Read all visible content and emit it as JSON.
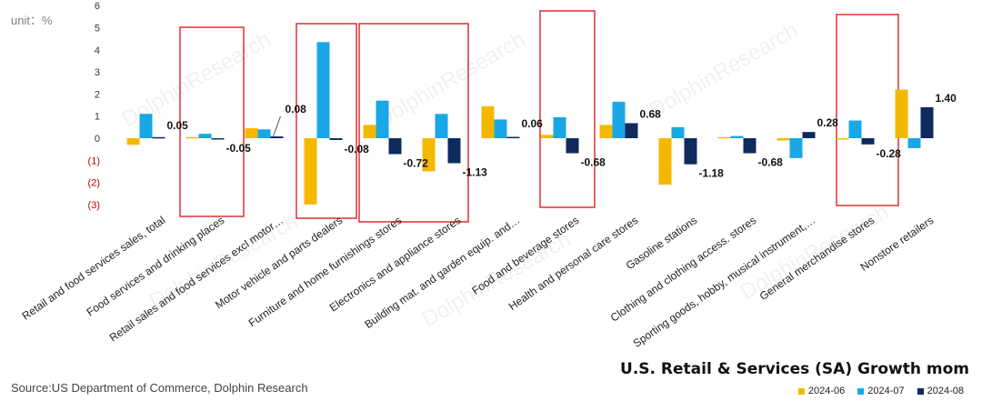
{
  "chart_data": {
    "type": "bar",
    "title": "U.S. Retail & Services (SA) Growth mom",
    "unit_label": "unit：%",
    "source": "Source:US Department of Commerce, Dolphin Research",
    "ylim": [
      -3,
      6
    ],
    "ytick_labels": [
      {
        "value": 6,
        "label": "6"
      },
      {
        "value": 5,
        "label": "5"
      },
      {
        "value": 4,
        "label": "4"
      },
      {
        "value": 3,
        "label": "3"
      },
      {
        "value": 2,
        "label": "2"
      },
      {
        "value": 1,
        "label": "1"
      },
      {
        "value": 0,
        "label": "0"
      },
      {
        "value": -1,
        "label": "(1)"
      },
      {
        "value": -2,
        "label": "(2)"
      },
      {
        "value": -3,
        "label": "(3)"
      }
    ],
    "categories": [
      "Retail and food services sales, total",
      "Food services and drinking places",
      "Retail sales and food services excl motor…",
      "Motor vehicle and parts dealers",
      "Furniture and home furnishings stores",
      "Electronics and appliance stores",
      "Building mat. and garden equip. and…",
      "Food and beverage stores",
      "Health and personal care stores",
      "Gasoline stations",
      "Clothing and clothing access. stores",
      "Sporting goods, hobby, musical instrument,…",
      "General merchandise stores",
      "Nonstore retailers"
    ],
    "series": [
      {
        "name": "2024-06",
        "color": "#f5b800",
        "values": [
          -0.3,
          0.05,
          0.45,
          -3.0,
          0.6,
          -1.5,
          1.45,
          0.15,
          0.6,
          -2.1,
          0.05,
          -0.1,
          0.0,
          2.2
        ]
      },
      {
        "name": "2024-07",
        "color": "#1aa7e6",
        "values": [
          1.1,
          0.2,
          0.4,
          4.35,
          1.7,
          1.1,
          0.85,
          0.95,
          1.65,
          0.5,
          0.1,
          -0.9,
          0.8,
          -0.45
        ]
      },
      {
        "name": "2024-08",
        "color": "#0f2a5c",
        "values": [
          0.05,
          -0.05,
          0.08,
          -0.08,
          -0.72,
          -1.13,
          0.06,
          -0.68,
          0.68,
          -1.18,
          -0.68,
          0.28,
          -0.28,
          1.4
        ]
      }
    ],
    "data_labels": [
      "0.05",
      "-0.05",
      "0.08",
      "-0.08",
      "-0.72",
      "-1.13",
      "0.06",
      "-0.68",
      "0.68",
      "-1.18",
      "-0.68",
      "0.28",
      "-0.28",
      "1.40"
    ],
    "highlight_boxes": [
      {
        "categories": [
          1
        ],
        "color": "#e03030"
      },
      {
        "categories": [
          3
        ],
        "color": "#e03030"
      },
      {
        "categories": [
          4,
          5
        ],
        "color": "#e03030"
      },
      {
        "categories": [
          7
        ],
        "color": "#e03030"
      },
      {
        "categories": [
          12
        ],
        "color": "#e03030"
      }
    ],
    "watermark": "DolphinResearch",
    "legend_position": "bottom-right",
    "grid": false
  }
}
